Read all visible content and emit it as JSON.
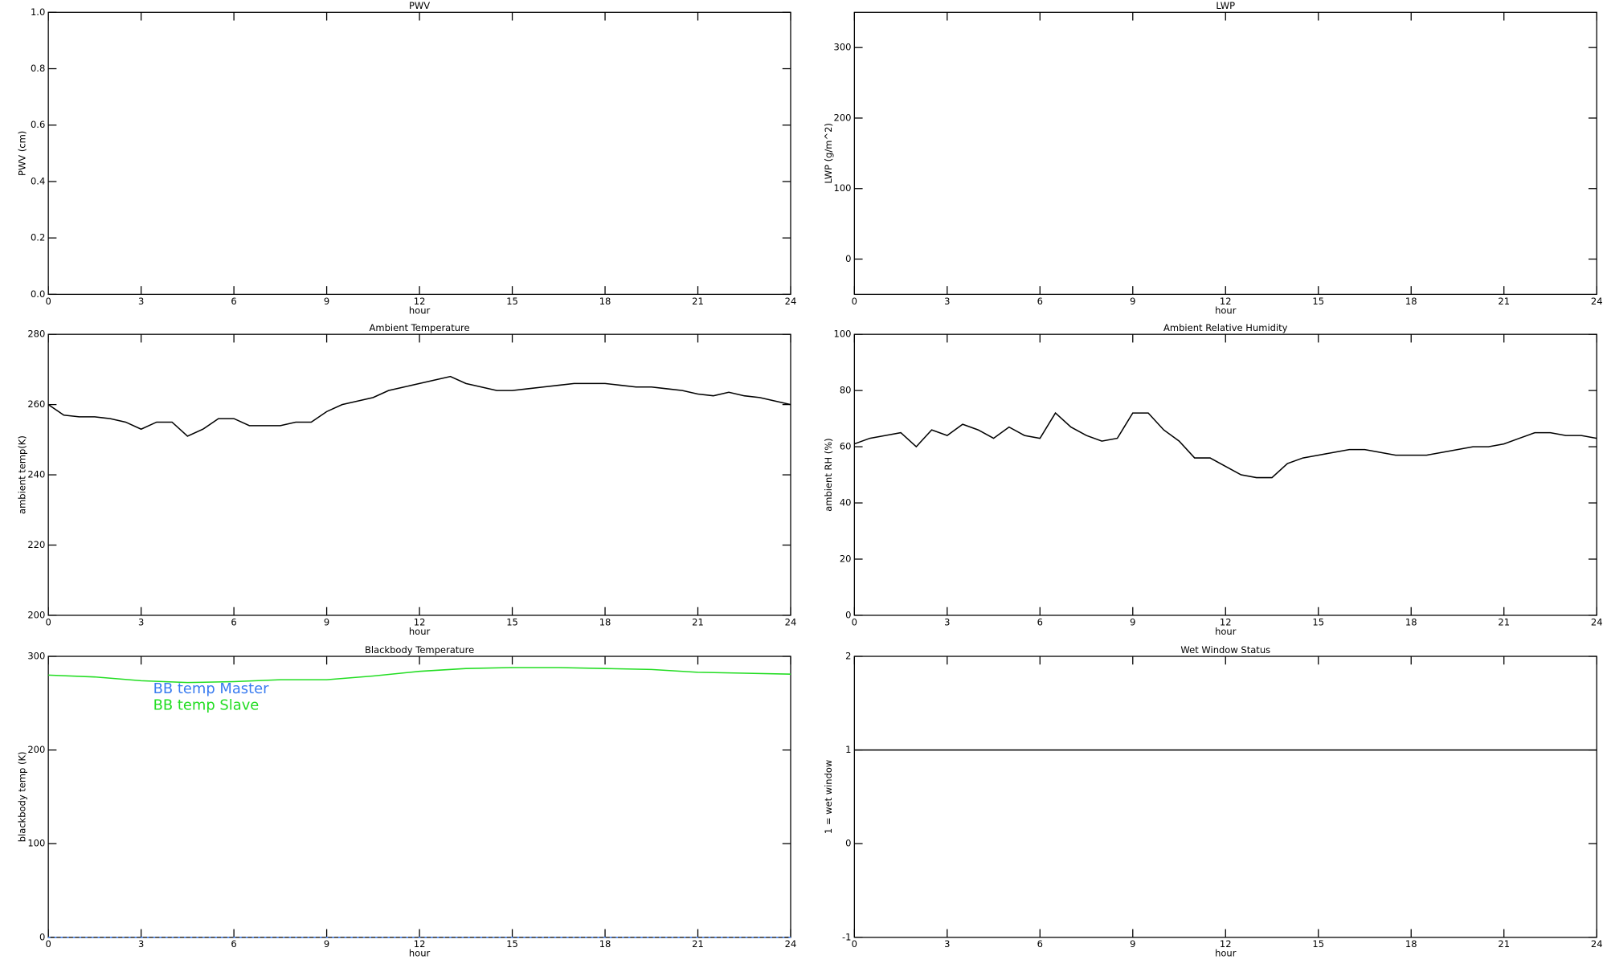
{
  "chart_data": [
    {
      "type": "line",
      "title": "PWV",
      "xlabel": "hour",
      "ylabel": "PWV (cm)",
      "xlim": [
        0,
        24
      ],
      "xticks": [
        0,
        3,
        6,
        9,
        12,
        15,
        18,
        21,
        24
      ],
      "ylim": [
        0,
        1
      ],
      "yticks": [
        {
          "value": 0,
          "label": "0.0"
        },
        0.2,
        0.4,
        0.6,
        0.8,
        {
          "value": 1,
          "label": "1.0"
        }
      ]
    },
    {
      "type": "line",
      "title": "LWP",
      "xlabel": "hour",
      "ylabel": "LWP (g/m^2)",
      "xlim": [
        0,
        24
      ],
      "xticks": [
        0,
        3,
        6,
        9,
        12,
        15,
        18,
        21,
        24
      ],
      "ylim": [
        -50,
        350
      ],
      "yticks": [
        0,
        100,
        200,
        300
      ]
    },
    {
      "type": "line",
      "title": "Ambient Temperature",
      "xlabel": "hour",
      "ylabel": "ambient temp(K)",
      "xlim": [
        0,
        24
      ],
      "xticks": [
        0,
        3,
        6,
        9,
        12,
        15,
        18,
        21,
        24
      ],
      "ylim": [
        200,
        280
      ],
      "yticks": [
        200,
        220,
        240,
        260,
        280
      ],
      "x": [
        0,
        0.5,
        1,
        1.5,
        2,
        2.5,
        3,
        3.5,
        4,
        4.5,
        5,
        5.5,
        6,
        6.5,
        7,
        7.5,
        8,
        8.5,
        9,
        9.5,
        10,
        10.5,
        11,
        11.5,
        12,
        12.5,
        13,
        13.5,
        14,
        14.5,
        15,
        15.5,
        16,
        16.5,
        17,
        17.5,
        18,
        18.5,
        19,
        19.5,
        20,
        20.5,
        21,
        21.5,
        22,
        22.5,
        23,
        23.5,
        24
      ],
      "series": [
        {
          "color": "#000000",
          "values": [
            260,
            257,
            256.5,
            256.5,
            256,
            255,
            253,
            255,
            255,
            251,
            253,
            256,
            256,
            254,
            254,
            254,
            255,
            255,
            258,
            260,
            261,
            262,
            264,
            265,
            266,
            267,
            268,
            266,
            265,
            264,
            264,
            264.5,
            265,
            265.5,
            266,
            266,
            266,
            265.5,
            265,
            265,
            264.5,
            264,
            263,
            262.5,
            263.5,
            262.5,
            262,
            261,
            260
          ]
        }
      ]
    },
    {
      "type": "line",
      "title": "Ambient Relative Humidity",
      "xlabel": "hour",
      "ylabel": "ambient RH (%)",
      "xlim": [
        0,
        24
      ],
      "xticks": [
        0,
        3,
        6,
        9,
        12,
        15,
        18,
        21,
        24
      ],
      "ylim": [
        0,
        100
      ],
      "yticks": [
        0,
        20,
        40,
        60,
        80,
        100
      ],
      "x": [
        0,
        0.5,
        1,
        1.5,
        2,
        2.5,
        3,
        3.5,
        4,
        4.5,
        5,
        5.5,
        6,
        6.5,
        7,
        7.5,
        8,
        8.5,
        9,
        9.5,
        10,
        10.5,
        11,
        11.5,
        12,
        12.5,
        13,
        13.5,
        14,
        14.5,
        15,
        15.5,
        16,
        16.5,
        17,
        17.5,
        18,
        18.5,
        19,
        19.5,
        20,
        20.5,
        21,
        21.5,
        22,
        22.5,
        23,
        23.5,
        24
      ],
      "series": [
        {
          "color": "#000000",
          "values": [
            61,
            63,
            64,
            65,
            60,
            66,
            64,
            68,
            66,
            63,
            67,
            64,
            63,
            72,
            67,
            64,
            62,
            63,
            72,
            72,
            66,
            62,
            56,
            56,
            53,
            50,
            49,
            49,
            54,
            56,
            57,
            58,
            59,
            59,
            58,
            57,
            57,
            57,
            58,
            59,
            60,
            60,
            61,
            63,
            65,
            65,
            64,
            64,
            63
          ]
        }
      ]
    },
    {
      "type": "line",
      "title": "Blackbody Temperature",
      "xlabel": "hour",
      "ylabel": "blackbody temp (K)",
      "xlim": [
        0,
        24
      ],
      "xticks": [
        0,
        3,
        6,
        9,
        12,
        15,
        18,
        21,
        24
      ],
      "ylim": [
        0,
        300
      ],
      "yticks": [
        0,
        100,
        200,
        300
      ],
      "legend": "upper left",
      "x": [
        0,
        1.5,
        3,
        4.5,
        6,
        7.5,
        9,
        10.5,
        12,
        13.5,
        15,
        16.5,
        18,
        19.5,
        21,
        22.5,
        24
      ],
      "series": [
        {
          "name": "BB temp Master",
          "color": "#3a7cf0",
          "values": [
            0,
            0,
            0,
            0,
            0,
            0,
            0,
            0,
            0,
            0,
            0,
            0,
            0,
            0,
            0,
            0,
            0
          ]
        },
        {
          "name": "BB temp Slave",
          "color": "#22dd22",
          "values": [
            280,
            278,
            274,
            272,
            273,
            275,
            275,
            279,
            284,
            287,
            288,
            288,
            287,
            286,
            283,
            282,
            281
          ]
        }
      ]
    },
    {
      "type": "line",
      "title": "Wet Window Status",
      "xlabel": "hour",
      "ylabel": "1 = wet window",
      "xlim": [
        0,
        24
      ],
      "xticks": [
        0,
        3,
        6,
        9,
        12,
        15,
        18,
        21,
        24
      ],
      "ylim": [
        -1,
        2
      ],
      "yticks": [
        -1,
        0,
        1,
        2
      ],
      "x": [
        0,
        24
      ],
      "series": [
        {
          "color": "#000000",
          "values": [
            1,
            1
          ]
        }
      ]
    }
  ]
}
